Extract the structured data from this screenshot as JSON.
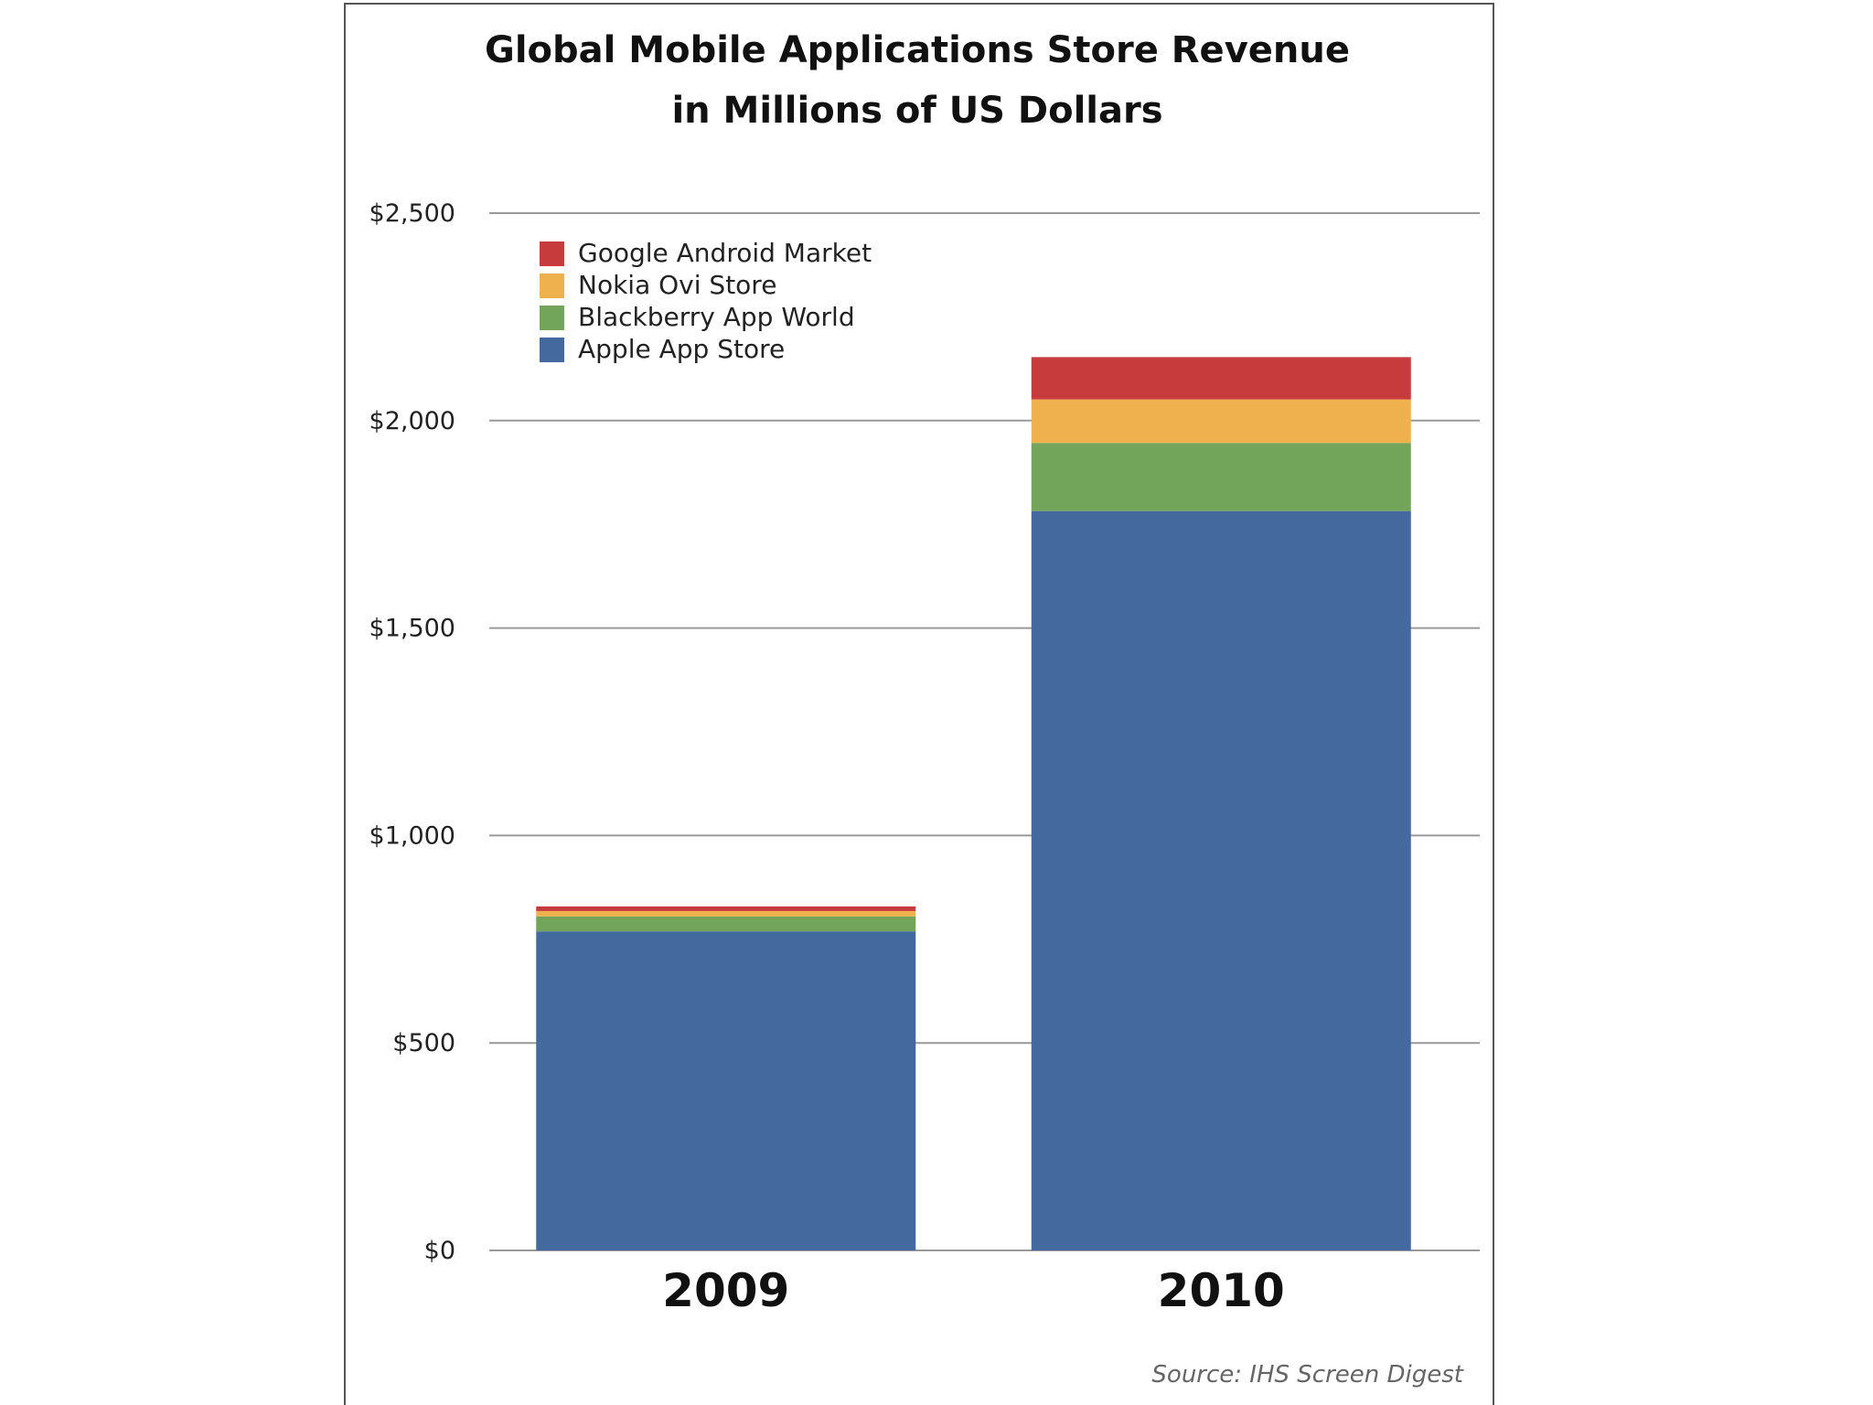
{
  "chart_data": {
    "type": "bar",
    "stacked": true,
    "title": "Global Mobile Applications Store Revenue",
    "subtitle": "in Millions of US Dollars",
    "categories": [
      "2009",
      "2010"
    ],
    "series": [
      {
        "name": "Apple App Store",
        "color": "#44699e",
        "values": [
          769,
          1782
        ]
      },
      {
        "name": "Blackberry App World",
        "color": "#72a45a",
        "values": [
          36,
          164
        ]
      },
      {
        "name": "Nokia Ovi Store",
        "color": "#eeb14e",
        "values": [
          13,
          105
        ]
      },
      {
        "name": "Google Android Market",
        "color": "#c73b3d",
        "values": [
          11,
          102
        ]
      }
    ],
    "legend_order": [
      "Google Android Market",
      "Nokia Ovi Store",
      "Blackberry App World",
      "Apple App Store"
    ],
    "yticks": [
      0,
      500,
      1000,
      1500,
      2000,
      2500
    ],
    "ytick_labels": [
      "$0",
      "$500",
      "$1,000",
      "$1,500",
      "$2,000",
      "$2,500"
    ],
    "ylim": [
      0,
      2500
    ],
    "xlabel": "",
    "ylabel": "",
    "grid": true,
    "legend_position": "top-left",
    "source": "Source: IHS Screen Digest"
  }
}
